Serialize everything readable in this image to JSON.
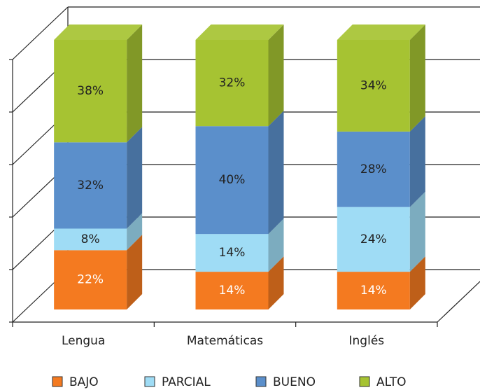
{
  "chart_data": {
    "type": "bar3d_stacked",
    "categories": [
      "Lengua",
      "Matemáticas",
      "Inglés"
    ],
    "series": [
      {
        "name": "BAJO",
        "color": "#f47a20",
        "values": [
          22,
          14,
          14
        ],
        "value_labels": [
          "22%",
          "14%",
          "14%"
        ]
      },
      {
        "name": "PARCIAL",
        "color": "#9fdcf5",
        "values": [
          8,
          14,
          24
        ],
        "value_labels": [
          "8%",
          "14%",
          "24%"
        ]
      },
      {
        "name": "BUENO",
        "color": "#5b8fcb",
        "values": [
          32,
          40,
          28
        ],
        "value_labels": [
          "32%",
          "40%",
          "28%"
        ]
      },
      {
        "name": "ALTO",
        "color": "#a6c332",
        "values": [
          38,
          32,
          34
        ],
        "value_labels": [
          "38%",
          "32%",
          "34%"
        ]
      }
    ],
    "ylim": [
      0,
      100
    ],
    "yticks": [
      0,
      20,
      40,
      60,
      80,
      100
    ],
    "grid": true,
    "legend": "bottom"
  }
}
